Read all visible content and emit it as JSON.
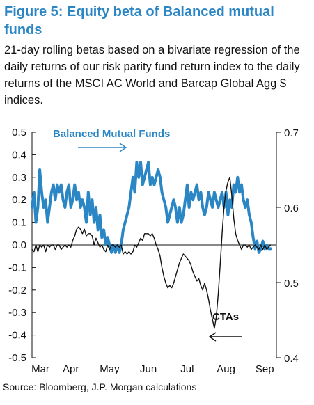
{
  "title": "Figure 5: Equity beta of Balanced mutual funds",
  "subtitle": "21-day rolling betas based on a bivariate regression of the daily returns of our risk parity fund return index to the daily returns of the MSCI AC World and Barcap Global Agg $ indices.",
  "source": "Source: Bloomberg, J.P. Morgan calculations",
  "colors": {
    "accent": "#2b86c5",
    "cta": "#111111",
    "axis": "#111111"
  },
  "chart_data": {
    "type": "line",
    "title": "Figure 5: Equity beta of Balanced mutual funds",
    "xlabel": "",
    "ylabel": "",
    "x_tick_labels": [
      "Mar",
      "Apr",
      "May",
      "Jun",
      "Jul",
      "Aug",
      "Sep"
    ],
    "y_left_ticks": [
      "0.5",
      "0.4",
      "0.3",
      "0.2",
      "0.1",
      "0.0",
      "-0.1",
      "-0.2",
      "-0.3",
      "-0.4",
      "-0.5"
    ],
    "y_right_ticks": [
      "0.7",
      "0.6",
      "0.5",
      "0.4"
    ],
    "ylim_left": [
      -0.5,
      0.5
    ],
    "ylim_right": [
      0.4,
      0.7
    ],
    "xlim": [
      0,
      6.3
    ],
    "grid": false,
    "annotations": [
      {
        "text": "Balanced Mutual Funds",
        "arrow": "right"
      },
      {
        "text": "CTAs",
        "arrow": "left"
      }
    ],
    "series": [
      {
        "name": "Balanced Mutual Funds",
        "axis": "right",
        "color": "#2b86c5",
        "x": [
          0.0,
          0.05,
          0.1,
          0.15,
          0.2,
          0.25,
          0.3,
          0.35,
          0.4,
          0.45,
          0.5,
          0.55,
          0.6,
          0.65,
          0.7,
          0.75,
          0.8,
          0.85,
          0.9,
          0.95,
          1.0,
          1.05,
          1.1,
          1.15,
          1.2,
          1.25,
          1.3,
          1.35,
          1.4,
          1.45,
          1.5,
          1.55,
          1.6,
          1.65,
          1.7,
          1.75,
          1.8,
          1.85,
          1.9,
          1.95,
          2.0,
          2.05,
          2.1,
          2.15,
          2.2,
          2.25,
          2.3,
          2.35,
          2.4,
          2.45,
          2.5,
          2.55,
          2.6,
          2.65,
          2.7,
          2.75,
          2.8,
          2.85,
          2.9,
          2.95,
          3.0,
          3.05,
          3.1,
          3.15,
          3.2,
          3.25,
          3.3,
          3.35,
          3.4,
          3.45,
          3.5,
          3.55,
          3.6,
          3.65,
          3.7,
          3.75,
          3.8,
          3.85,
          3.9,
          3.95,
          4.0,
          4.05,
          4.1,
          4.15,
          4.2,
          4.25,
          4.3,
          4.35,
          4.4,
          4.45,
          4.5,
          4.55,
          4.6,
          4.65,
          4.7,
          4.75,
          4.8,
          4.85,
          4.9,
          4.95,
          5.0,
          5.05,
          5.1,
          5.15,
          5.2,
          5.25,
          5.3,
          5.35,
          5.4,
          5.45,
          5.5,
          5.55,
          5.6,
          5.65,
          5.7,
          5.75,
          5.8,
          5.85,
          5.9,
          5.95,
          6.0,
          6.05,
          6.1,
          6.15
        ],
        "values": [
          0.6,
          0.62,
          0.58,
          0.6,
          0.65,
          0.62,
          0.6,
          0.61,
          0.58,
          0.6,
          0.62,
          0.63,
          0.61,
          0.63,
          0.62,
          0.63,
          0.61,
          0.6,
          0.62,
          0.63,
          0.6,
          0.61,
          0.63,
          0.61,
          0.62,
          0.6,
          0.61,
          0.6,
          0.58,
          0.62,
          0.59,
          0.61,
          0.58,
          0.6,
          0.57,
          0.59,
          0.56,
          0.57,
          0.55,
          0.56,
          0.55,
          0.54,
          0.55,
          0.54,
          0.55,
          0.54,
          0.55,
          0.57,
          0.58,
          0.59,
          0.6,
          0.62,
          0.64,
          0.62,
          0.66,
          0.64,
          0.66,
          0.63,
          0.64,
          0.65,
          0.66,
          0.63,
          0.64,
          0.63,
          0.64,
          0.65,
          0.64,
          0.62,
          0.61,
          0.6,
          0.58,
          0.59,
          0.6,
          0.61,
          0.6,
          0.58,
          0.6,
          0.58,
          0.59,
          0.61,
          0.63,
          0.6,
          0.62,
          0.61,
          0.62,
          0.63,
          0.61,
          0.62,
          0.6,
          0.59,
          0.6,
          0.62,
          0.61,
          0.6,
          0.62,
          0.61,
          0.6,
          0.61,
          0.62,
          0.6,
          0.62,
          0.59,
          0.61,
          0.6,
          0.63,
          0.62,
          0.64,
          0.62,
          0.63,
          0.61,
          0.6,
          0.61,
          0.59,
          0.58,
          0.56,
          0.545,
          0.555,
          0.54,
          0.545,
          0.555,
          0.545,
          0.55,
          0.545,
          0.545
        ]
      },
      {
        "name": "CTAs",
        "axis": "left",
        "color": "#111111",
        "x": [
          0.0,
          0.05,
          0.1,
          0.15,
          0.2,
          0.25,
          0.3,
          0.35,
          0.4,
          0.45,
          0.5,
          0.55,
          0.6,
          0.65,
          0.7,
          0.75,
          0.8,
          0.85,
          0.9,
          0.95,
          1.0,
          1.05,
          1.1,
          1.15,
          1.2,
          1.25,
          1.3,
          1.35,
          1.4,
          1.45,
          1.5,
          1.55,
          1.6,
          1.65,
          1.7,
          1.75,
          1.8,
          1.85,
          1.9,
          1.95,
          2.0,
          2.05,
          2.1,
          2.15,
          2.2,
          2.25,
          2.3,
          2.35,
          2.4,
          2.45,
          2.5,
          2.55,
          2.6,
          2.65,
          2.7,
          2.75,
          2.8,
          2.85,
          2.9,
          2.95,
          3.0,
          3.05,
          3.1,
          3.15,
          3.2,
          3.25,
          3.3,
          3.35,
          3.4,
          3.45,
          3.5,
          3.55,
          3.6,
          3.65,
          3.7,
          3.75,
          3.8,
          3.85,
          3.9,
          3.95,
          4.0,
          4.05,
          4.1,
          4.15,
          4.2,
          4.25,
          4.3,
          4.35,
          4.4,
          4.45,
          4.5,
          4.55,
          4.6,
          4.65,
          4.7,
          4.75,
          4.8,
          4.85,
          4.9,
          4.95,
          5.0,
          5.05,
          5.1,
          5.15,
          5.2,
          5.25,
          5.3,
          5.35,
          5.4,
          5.45,
          5.5,
          5.55,
          5.6,
          5.65,
          5.7,
          5.75,
          5.8,
          5.85,
          5.9,
          5.95,
          6.0,
          6.05,
          6.1,
          6.15
        ],
        "values": [
          -0.02,
          -0.03,
          0.0,
          -0.03,
          0.0,
          -0.01,
          0.0,
          -0.03,
          0.0,
          -0.01,
          0.0,
          0.0,
          -0.02,
          0.0,
          0.0,
          -0.02,
          -0.01,
          0.0,
          -0.01,
          0.0,
          -0.01,
          0.02,
          0.04,
          0.07,
          0.08,
          0.07,
          0.05,
          0.07,
          0.04,
          0.05,
          0.05,
          0.04,
          0.0,
          0.03,
          0.01,
          -0.01,
          0.0,
          -0.02,
          -0.03,
          0.0,
          -0.02,
          0.0,
          0.0,
          -0.01,
          0.0,
          -0.01,
          0.0,
          -0.04,
          -0.03,
          -0.04,
          -0.03,
          -0.04,
          -0.03,
          0.0,
          -0.01,
          0.01,
          0.03,
          0.02,
          0.05,
          0.05,
          0.05,
          0.04,
          0.05,
          0.03,
          0.0,
          -0.02,
          -0.05,
          -0.1,
          -0.14,
          -0.17,
          -0.19,
          -0.18,
          -0.19,
          -0.17,
          -0.14,
          -0.11,
          -0.08,
          -0.06,
          -0.04,
          -0.05,
          -0.06,
          -0.07,
          -0.09,
          -0.12,
          -0.14,
          -0.16,
          -0.15,
          -0.18,
          -0.2,
          -0.17,
          -0.2,
          -0.24,
          -0.29,
          -0.33,
          -0.37,
          -0.32,
          -0.22,
          -0.09,
          0.05,
          0.17,
          0.24,
          0.28,
          0.3,
          0.22,
          0.12,
          0.05,
          0.02,
          0.0,
          -0.02,
          0.0,
          0.0,
          -0.01,
          0.0,
          -0.02,
          -0.01,
          0.0,
          -0.01,
          -0.02,
          0.0,
          -0.02,
          0.0,
          -0.02,
          -0.01,
          0.0
        ]
      }
    ]
  }
}
